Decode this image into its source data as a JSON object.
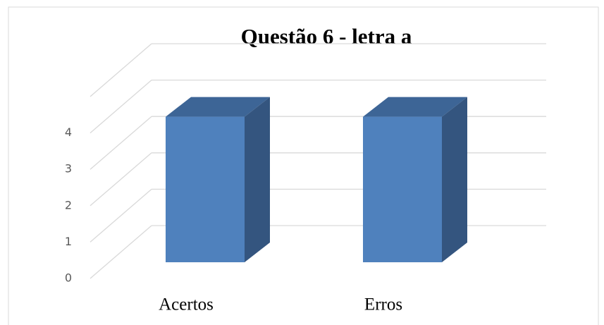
{
  "chart_data": {
    "type": "bar3d",
    "title": "Questão 6 - letra a",
    "categories": [
      "Acertos",
      "Erros"
    ],
    "values": [
      4,
      4
    ],
    "color": "#4f81bd",
    "ylim": [
      0,
      5
    ],
    "yticks": [
      0,
      1,
      2,
      3,
      4
    ],
    "grid": true
  }
}
